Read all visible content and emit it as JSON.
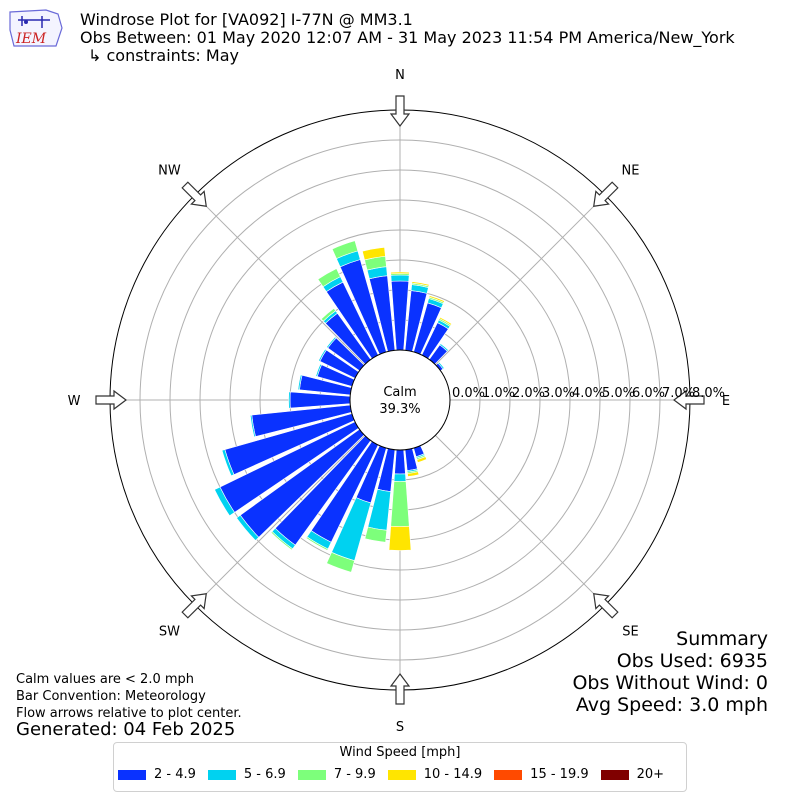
{
  "header": {
    "title": "Windrose Plot for [VA092] I-77N @ MM3.1",
    "subtitle": "Obs Between: 01 May 2020 12:07 AM - 31 May 2023 11:54 PM America/New_York",
    "constraints": "↳ constraints: May"
  },
  "logo": {
    "text": "IEM",
    "color": "#cc2222"
  },
  "footer": {
    "note1": "Calm values are < 2.0 mph",
    "note2": "Bar Convention: Meteorology",
    "note3": "Flow arrows relative to plot center.",
    "generated": "Generated: 04 Feb 2025"
  },
  "summary": {
    "heading": "Summary",
    "obs_used": "Obs Used: 6935",
    "obs_without_wind": "Obs Without Wind: 0",
    "avg_speed": "Avg Speed: 3.0 mph"
  },
  "legend": {
    "title": "Wind Speed [mph]",
    "items": [
      {
        "label": "2 - 4.9",
        "color": "#0a32ff"
      },
      {
        "label": "5 - 6.9",
        "color": "#00d2f0"
      },
      {
        "label": "7 - 9.9",
        "color": "#7dff7b"
      },
      {
        "label": "10 - 14.9",
        "color": "#ffe500"
      },
      {
        "label": "15 - 19.9",
        "color": "#ff4a00"
      },
      {
        "label": "20+",
        "color": "#800000"
      }
    ]
  },
  "chart_data": {
    "type": "windrose",
    "calm_label": "Calm",
    "calm_value": "39.3%",
    "radial_labels": [
      "0.0%",
      "1.0%",
      "2.0%",
      "3.0%",
      "4.0%",
      "5.0%",
      "6.0%",
      "7.0%",
      "8.0%"
    ],
    "radial_max": 8.0,
    "compass_labels": [
      "N",
      "NE",
      "E",
      "SE",
      "S",
      "SW",
      "W",
      "NW"
    ],
    "directions": [
      0,
      10,
      20,
      30,
      40,
      50,
      60,
      70,
      80,
      90,
      100,
      110,
      120,
      130,
      140,
      150,
      160,
      170,
      180,
      190,
      200,
      210,
      220,
      230,
      240,
      250,
      260,
      270,
      280,
      290,
      300,
      310,
      320,
      330,
      340,
      350
    ],
    "series": [
      {
        "name": "2 - 4.9",
        "color": "#0a32ff",
        "values": [
          2.3,
          2.0,
          1.7,
          1.2,
          0.6,
          0.1,
          0.0,
          0.0,
          0.0,
          0.0,
          0.0,
          0.0,
          0.0,
          0.0,
          0.0,
          0.0,
          0.3,
          0.7,
          0.8,
          1.4,
          1.9,
          3.6,
          4.3,
          4.9,
          5.0,
          4.4,
          3.3,
          2.0,
          1.7,
          1.2,
          1.3,
          1.3,
          1.9,
          2.7,
          3.2,
          2.5
        ]
      },
      {
        "name": "5 - 6.9",
        "color": "#00d2f0",
        "values": [
          0.2,
          0.2,
          0.15,
          0.1,
          0.05,
          0.05,
          0.0,
          0.0,
          0.0,
          0.0,
          0.0,
          0.0,
          0.0,
          0.0,
          0.0,
          0.0,
          0.05,
          0.05,
          0.25,
          1.3,
          2.0,
          0.25,
          0.15,
          0.15,
          0.2,
          0.1,
          0.05,
          0.05,
          0.05,
          0.05,
          0.05,
          0.05,
          0.1,
          0.2,
          0.3,
          0.3
        ]
      },
      {
        "name": "7 - 9.9",
        "color": "#7dff7b",
        "values": [
          0.05,
          0.05,
          0.05,
          0.05,
          0.0,
          0.0,
          0.0,
          0.0,
          0.0,
          0.0,
          0.0,
          0.0,
          0.0,
          0.0,
          0.0,
          0.0,
          0.05,
          0.05,
          1.5,
          0.4,
          0.4,
          0.05,
          0.05,
          0.0,
          0.0,
          0.0,
          0.0,
          0.0,
          0.0,
          0.0,
          0.0,
          0.0,
          0.1,
          0.3,
          0.35,
          0.35
        ]
      },
      {
        "name": "10 - 14.9",
        "color": "#ffe500",
        "values": [
          0.05,
          0.05,
          0.05,
          0.05,
          0.0,
          0.0,
          0.0,
          0.0,
          0.0,
          0.0,
          0.0,
          0.0,
          0.0,
          0.0,
          0.0,
          0.0,
          0.1,
          0.1,
          0.8,
          0.0,
          0.0,
          0.0,
          0.0,
          0.0,
          0.0,
          0.0,
          0.0,
          0.0,
          0.0,
          0.0,
          0.0,
          0.0,
          0.0,
          0.0,
          0.0,
          0.3
        ]
      },
      {
        "name": "15 - 19.9",
        "color": "#ff4a00",
        "values": [
          0,
          0,
          0,
          0,
          0,
          0,
          0,
          0,
          0,
          0,
          0,
          0,
          0,
          0,
          0,
          0,
          0,
          0,
          0,
          0,
          0,
          0,
          0,
          0,
          0,
          0,
          0,
          0,
          0,
          0,
          0,
          0,
          0,
          0,
          0,
          0
        ]
      },
      {
        "name": "20+",
        "color": "#800000",
        "values": [
          0,
          0,
          0,
          0,
          0,
          0,
          0,
          0,
          0,
          0,
          0,
          0,
          0,
          0,
          0,
          0,
          0,
          0,
          0,
          0,
          0,
          0,
          0,
          0,
          0,
          0,
          0,
          0,
          0,
          0,
          0,
          0,
          0,
          0,
          0,
          0
        ]
      }
    ]
  }
}
